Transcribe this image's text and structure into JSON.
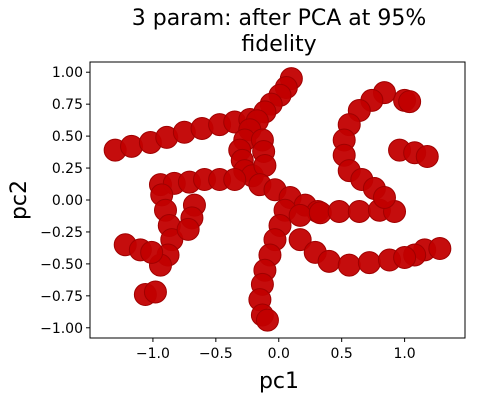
{
  "chart_data": {
    "type": "scatter",
    "title": "3 param: after PCA at 95% fidelity",
    "xlabel": "pc1",
    "ylabel": "pc2",
    "color": "#c20000",
    "xlim": [
      -1.5,
      1.48
    ],
    "ylim": [
      -1.08,
      1.08
    ],
    "xticks": [
      {
        "value": -1.0,
        "label": "−1.0"
      },
      {
        "value": -0.5,
        "label": "−0.5"
      },
      {
        "value": 0,
        "label": "0.0"
      },
      {
        "value": 0.5,
        "label": "0.5"
      },
      {
        "value": 1.0,
        "label": "1.0"
      }
    ],
    "yticks": [
      {
        "value": 1.0,
        "label": "1.00"
      },
      {
        "value": 0.75,
        "label": "0.75"
      },
      {
        "value": 0.5,
        "label": "0.50"
      },
      {
        "value": 0.25,
        "label": "0.25"
      },
      {
        "value": 0,
        "label": "0.00"
      },
      {
        "value": -0.25,
        "label": "−0.25"
      },
      {
        "value": -0.5,
        "label": "−0.50"
      },
      {
        "value": -0.75,
        "label": "−0.75"
      },
      {
        "value": -1.0,
        "label": "−1.00"
      }
    ],
    "x": [
      -1.3,
      -1.17,
      -1.02,
      -0.89,
      -0.75,
      -0.61,
      -0.47,
      -0.35,
      -0.23,
      0.1,
      0.06,
      0.01,
      -0.06,
      -0.11,
      -0.17,
      -0.23,
      -0.27,
      -0.31,
      -0.29,
      -0.27,
      -0.21,
      -0.13,
      -0.12,
      -0.11,
      -0.94,
      -0.83,
      -0.71,
      -0.59,
      -0.47,
      -0.35,
      -0.15,
      -0.03,
      0.09,
      0.21,
      0.31,
      -0.93,
      -0.9,
      -0.87,
      -0.85,
      -0.88,
      -0.94,
      -0.67,
      -0.69,
      -0.72,
      -1.22,
      -1.1,
      -1.01,
      -1.06,
      -0.98,
      0.96,
      1.08,
      1.18,
      1.0,
      1.04,
      1.16,
      1.28,
      1.08,
      0.05,
      0.01,
      -0.03,
      -0.07,
      -0.11,
      -0.13,
      -0.15,
      -0.13,
      -0.09,
      0.17,
      0.33,
      0.48,
      0.64,
      0.8,
      0.92,
      0.17,
      0.29,
      0.4,
      0.56,
      0.72,
      0.88,
      1.0,
      0.84,
      0.74,
      0.64,
      0.56,
      0.52,
      0.52,
      0.56,
      0.66,
      0.76,
      0.84
    ],
    "values": [
      0.39,
      0.42,
      0.45,
      0.49,
      0.53,
      0.56,
      0.59,
      0.61,
      0.63,
      0.95,
      0.88,
      0.82,
      0.75,
      0.69,
      0.62,
      0.55,
      0.47,
      0.39,
      0.31,
      0.23,
      0.19,
      0.47,
      0.38,
      0.27,
      0.12,
      0.13,
      0.14,
      0.16,
      0.16,
      0.16,
      0.12,
      0.08,
      0.02,
      -0.04,
      -0.09,
      0.04,
      -0.08,
      -0.2,
      -0.31,
      -0.43,
      -0.51,
      -0.04,
      -0.14,
      -0.23,
      -0.35,
      -0.39,
      -0.41,
      -0.74,
      -0.72,
      0.39,
      0.37,
      0.34,
      0.78,
      0.77,
      -0.39,
      -0.38,
      -0.43,
      -0.08,
      -0.2,
      -0.31,
      -0.43,
      -0.55,
      -0.66,
      -0.78,
      -0.9,
      -0.94,
      -0.12,
      -0.1,
      -0.09,
      -0.09,
      -0.08,
      -0.09,
      -0.31,
      -0.41,
      -0.48,
      -0.51,
      -0.49,
      -0.47,
      -0.45,
      0.84,
      0.78,
      0.7,
      0.59,
      0.47,
      0.35,
      0.23,
      0.16,
      0.09,
      0.02
    ]
  }
}
